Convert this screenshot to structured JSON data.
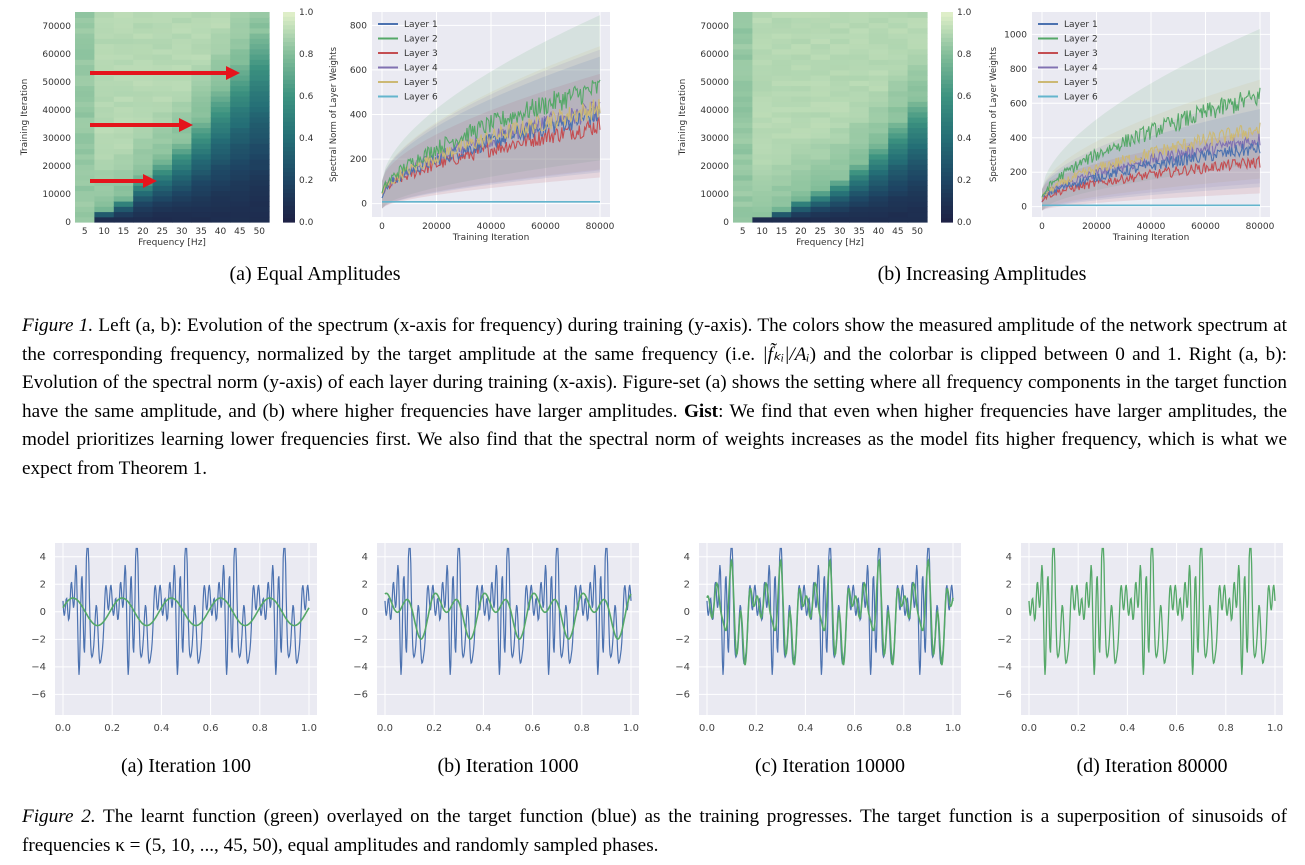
{
  "figure1": {
    "colorbar_ticks": [
      "0.0",
      "0.2",
      "0.4",
      "0.6",
      "0.8",
      "1.0"
    ],
    "heatmap_xlabel": "Frequency [Hz]",
    "heatmap_ylabel": "Training Iteration",
    "heatmap_xticks": [
      "5",
      "10",
      "15",
      "20",
      "25",
      "30",
      "35",
      "40",
      "45",
      "50"
    ],
    "heatmap_yticks": [
      "0",
      "10000",
      "20000",
      "30000",
      "40000",
      "50000",
      "60000",
      "70000"
    ],
    "norm_xlabel": "Training Iteration",
    "norm_ylabel": "Spectral Norm of Layer Weights",
    "norm_xticks": [
      "0",
      "20000",
      "40000",
      "60000",
      "80000"
    ],
    "legend": [
      "Layer 1",
      "Layer 2",
      "Layer 3",
      "Layer 4",
      "Layer 5",
      "Layer 6"
    ],
    "legend_colors": [
      "#4c72b0",
      "#55a868",
      "#c44e52",
      "#8172b2",
      "#ccb974",
      "#64b5cd"
    ],
    "panel_a": {
      "label": "(a) Equal Amplitudes",
      "norm_yticks": [
        "0",
        "200",
        "400",
        "600",
        "800"
      ],
      "learned_until": [
        0,
        4000,
        8000,
        16000,
        22000,
        28000,
        37000,
        48000,
        58000,
        68000
      ],
      "final_norms": [
        400,
        520,
        350,
        420,
        430,
        10
      ]
    },
    "panel_b": {
      "label": "(b) Increasing Amplitudes",
      "norm_yticks": [
        "0",
        "200",
        "400",
        "600",
        "800",
        "1000"
      ],
      "learned_until": [
        0,
        1500,
        4000,
        8000,
        11000,
        15000,
        21000,
        28000,
        36000,
        44000
      ],
      "final_norms": [
        340,
        640,
        260,
        390,
        450,
        10
      ]
    }
  },
  "caption1": {
    "label": "Figure 1.",
    "part1": " Left (a, b): Evolution of the spectrum (x-axis for frequency) during training (y-axis). The colors show the measured amplitude of the network spectrum at the corresponding frequency, normalized by the target amplitude at the same frequency (i.e. ",
    "formula": "|f̃ₖᵢ|/Aᵢ",
    "part2": ") and the colorbar is clipped between 0 and 1. Right (a, b): Evolution of the spectral norm (y-axis) of each layer during training (x-axis). Figure-set (a) shows the setting where all frequency components in the target function have the same amplitude, and (b) where higher frequencies have larger amplitudes. ",
    "gist_label": "Gist",
    "part3": ": We find that even when higher frequencies have larger amplitudes, the model prioritizes learning lower frequencies first. We also find that the spectral norm of weights increases as the model fits higher frequency, which is what we expect from Theorem 1."
  },
  "figure2": {
    "xticks": [
      "0.0",
      "0.2",
      "0.4",
      "0.6",
      "0.8",
      "1.0"
    ],
    "yticks": [
      "4",
      "2",
      "0",
      "−2",
      "−4",
      "−6"
    ],
    "target_color": "#4c72b0",
    "learned_color": "#55a868",
    "panels": [
      {
        "label": "(a) Iteration 100",
        "frequencies_fit": 1
      },
      {
        "label": "(b) Iteration 1000",
        "frequencies_fit": 2
      },
      {
        "label": "(c) Iteration 10000",
        "frequencies_fit": 6
      },
      {
        "label": "(d) Iteration 80000",
        "frequencies_fit": 10
      }
    ]
  },
  "caption2": {
    "label": "Figure 2.",
    "text": " The learnt function (green) overlayed on the target function (blue) as the training progresses. The target function is a superposition of sinusoids of frequencies κ = (5, 10, ..., 45, 50), equal amplitudes and randomly sampled phases."
  }
}
